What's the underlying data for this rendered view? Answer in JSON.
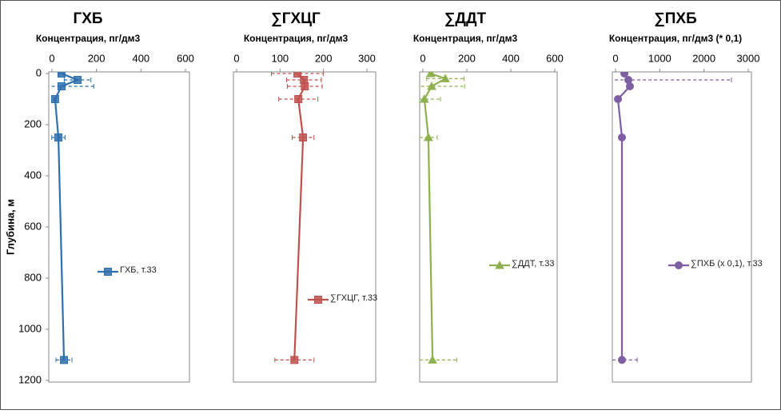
{
  "chart_data": [
    {
      "type": "line",
      "title": "ГХБ",
      "xlabel": "Концентрация, пг/дм3",
      "ylabel": "Глубина, м",
      "xlim": [
        0,
        600
      ],
      "xticks": [
        0,
        200,
        400,
        600
      ],
      "ylim": [
        0,
        1200
      ],
      "yticks": [
        0,
        200,
        400,
        600,
        800,
        1000,
        1200
      ],
      "y": [
        0,
        25,
        50,
        100,
        250,
        1120
      ],
      "series": [
        {
          "name": "ГХБ, т.33",
          "color": "#2e6fae",
          "marker": "square",
          "values": [
            43,
            115,
            43,
            14,
            29,
            54
          ],
          "errors": [
            10,
            60,
            145,
            5,
            30,
            36
          ]
        }
      ]
    },
    {
      "type": "line",
      "title": "∑ГХЦГ",
      "xlabel": "Концентрация, пг/дм3",
      "xlim": [
        0,
        300
      ],
      "xticks": [
        0,
        100,
        200,
        300
      ],
      "ylim": [
        0,
        1200
      ],
      "y": [
        0,
        25,
        50,
        100,
        250,
        1120
      ],
      "series": [
        {
          "name": "∑ГХЦГ, т.33",
          "color": "#c0504d",
          "marker": "square",
          "values": [
            140,
            155,
            157,
            142,
            153,
            133
          ],
          "errors": [
            60,
            40,
            40,
            45,
            25,
            45
          ]
        }
      ]
    },
    {
      "type": "line",
      "title": "∑ДДТ",
      "xlabel": "Концентрация, пг/дм3",
      "xlim": [
        0,
        600
      ],
      "xticks": [
        0,
        200,
        400,
        600
      ],
      "ylim": [
        0,
        1200
      ],
      "y": [
        0,
        20,
        50,
        100,
        250,
        1120
      ],
      "series": [
        {
          "name": "∑ДДТ, т.33",
          "color": "#8fb04f",
          "marker": "triangle",
          "values": [
            36,
            102,
            40,
            7,
            25,
            44
          ],
          "errors": [
            10,
            85,
            150,
            73,
            40,
            110
          ]
        }
      ]
    },
    {
      "type": "line",
      "title": "∑ПХБ",
      "xlabel": "Концентрация, пг/дм3 (* 0,1)",
      "xlim": [
        0,
        3000
      ],
      "xticks": [
        0,
        1000,
        2000,
        3000
      ],
      "ylim": [
        0,
        1200
      ],
      "y": [
        0,
        25,
        50,
        100,
        250,
        1120
      ],
      "series": [
        {
          "name": "∑ПХБ (x 0,1), т.33",
          "color": "#7e5fa3",
          "marker": "circle",
          "values": [
            200,
            290,
            325,
            55,
            145,
            145
          ],
          "errors": [
            40,
            2330,
            60,
            20,
            40,
            345
          ]
        }
      ]
    }
  ]
}
